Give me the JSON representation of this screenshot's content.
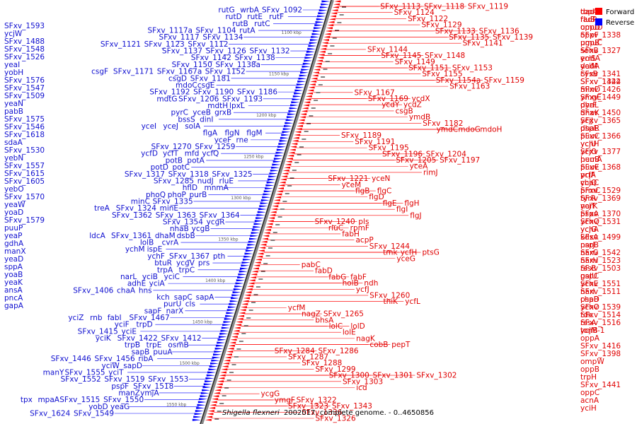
{
  "legend": {
    "forward": {
      "label": "Forward",
      "color": "#ff0000"
    },
    "reverse": {
      "label": "Reverse",
      "color": "#0000ff"
    }
  },
  "caption": {
    "organism": "Shigella flexneri",
    "rest": "2002017, complete genome. - 0..4650856"
  },
  "scale_labels": [
    "1100 kbp",
    "1150 kbp",
    "1200 kbp",
    "1250 kbp",
    "1300 kbp",
    "1350 kbp",
    "1400 kbp",
    "1450 kbp",
    "1500 kbp",
    "1550 kbp"
  ],
  "forward_genes": [
    "SFxv_1113",
    "SFxv_1118",
    "SFxv_1119",
    "SFxv_1124",
    "SFxv_1122",
    "SFxv_1129",
    "SFxv_1133",
    "SFxv_1136",
    "SFxv_1135",
    "SFxv_1139",
    "SFxv_1141",
    "SFxv_1144",
    "SFxv_1145",
    "SFxv_1148",
    "SFxv_1149",
    "SFxv_1151",
    "SFxv_1153",
    "SFxv_1155",
    "SFxv_1154a",
    "SFxv_1159",
    "SFxv_1163",
    "SFxv_1167",
    "SFxv_1169",
    "ycdX",
    "ycdY",
    "ycdZ",
    "csgB",
    "ymdB",
    "SFxv_1182",
    "ymdC",
    "mdoG",
    "mdoH",
    "SFxv_1189",
    "SFxv_1191",
    "SFxv_1195",
    "SFxv_1196",
    "SFxv_1204",
    "SFxv_1205",
    "SFxv_1197",
    "yceA",
    "rimJ",
    "SFxv_1221",
    "yceN",
    "yceM",
    "flgB",
    "flgC",
    "flgD",
    "flgE",
    "flgH",
    "flgI",
    "flgJ",
    "SFxv_1240",
    "pls",
    "rluC",
    "rpmF",
    "fabH",
    "acpP",
    "SFxv_1244",
    "tmk",
    "ycfH",
    "ptsG",
    "yceG",
    "pabC",
    "fabD",
    "fabG",
    "fabF",
    "holB",
    "ndh",
    "ycfJ",
    "SFxv_1260",
    "thiK",
    "ycfL",
    "ycfM",
    "nagZ",
    "SFxv_1265",
    "bhsA",
    "lolC",
    "lolD",
    "lolE",
    "nagK",
    "cobB",
    "pepT",
    "SFxv_1284",
    "SFxv_1286",
    "SFxv_1287",
    "SFxv_1288",
    "SFxv_1299",
    "SFxv_1300",
    "SFxv_1301",
    "SFxv_1302",
    "SFxv_1303",
    "icd",
    "ycgG",
    "ymgF",
    "SFxv_1322",
    "SFxv_1323",
    "SFxv_1343",
    "SFxv_1336",
    "SFxv_1326",
    "dadX",
    "fadR",
    "umuD",
    "SFxv_1338",
    "umuC",
    "SFxv_1327",
    "emtA",
    "dadA",
    "SFxv_1341",
    "SFxv_1342",
    "mInD",
    "ymgE",
    "dhaL",
    "dhaK",
    "SFxv_1365",
    "dhaR",
    "SFxv_1366",
    "ychH",
    "SFxv_1377",
    "hemA",
    "SFxv_1368",
    "prfA",
    "chaC",
    "prmC",
    "SFxv_1369",
    "narK",
    "SFxv_1370",
    "ychQ",
    "ychA",
    "kdsA",
    "narJ",
    "narG",
    "narH",
    "rssB",
    "galU",
    "ychE",
    "narI",
    "chaB",
    "ychO",
    "tdk",
    "rssA",
    "tonB",
    "oppA",
    "SFxv_1416",
    "SFxv_1398",
    "ompW",
    "oppB",
    "trpH",
    "SFxv_1441",
    "oppC",
    "acnA",
    "yciH",
    "topA",
    "rluB",
    "oppD",
    "oppF",
    "pgpB",
    "sohB",
    "yciS",
    "yciM",
    "cysB",
    "SFxv_1424",
    "SFxv_1426",
    "SFxv_1449",
    "pyrF",
    "SFxv_1450",
    "ycjJ",
    "pspE",
    "puuC",
    "ycjU",
    "ycjO",
    "puuB",
    "puuE",
    "ycjF",
    "ycjQ",
    "SFxv_1529",
    "tyrR",
    "ycjT",
    "pspA",
    "SFxv_1531",
    "ycjG",
    "SFxv_1499",
    "pspB",
    "SFxv_1542",
    "SFxv_1523",
    "SFxv_1503",
    "pspC",
    "SFxv_1551",
    "SFxv_1511",
    "pspD",
    "SFxv_1539",
    "SFxv_1514",
    "SFxv_1516",
    "ycjM-1"
  ],
  "reverse_genes": [
    "SFxv_1092",
    "wrbA",
    "rutG",
    "rutF",
    "rutE",
    "rutD",
    "rutC",
    "rutB",
    "rutA",
    "SFxv_1104",
    "SFxv_1117a",
    "SFxv_1134",
    "SFxv_1117",
    "SFxv_1112",
    "SFxv_1123",
    "SFxv_1121",
    "SFxv_1132",
    "SFxv_1126",
    "SFxv_1137",
    "SFxv_1138",
    "SFxv_1142",
    "SFxv_1138a",
    "SFxv_1150",
    "SFxv_1152",
    "SFxv_1167a",
    "SFxv_1171",
    "csgF",
    "SFxv_1181",
    "csgD",
    "csgE",
    "mdoC",
    "SFxv_1186",
    "SFxv_1190",
    "SFxv_1192",
    "SFxv_1193",
    "SFxv_1206",
    "mdtG",
    "lpxL",
    "mdtH",
    "grxB",
    "yceB",
    "pyrC",
    "dinI",
    "bssS",
    "solA",
    "yceJ",
    "yceI",
    "flgM",
    "flgN",
    "flgA",
    "rne",
    "yceF",
    "SFxv_1259",
    "SFxv_1270",
    "ycfQ",
    "mfd",
    "ycfT",
    "ycfD",
    "potA",
    "potB",
    "potC",
    "potD",
    "SFxv_1325",
    "SFxv_1318",
    "SFxv_1317",
    "rluE",
    "nudJ",
    "SFxv_1285",
    "mnmA",
    "hflD",
    "purB",
    "phoP",
    "phoQ",
    "SFxv_1335",
    "minC",
    "minE",
    "SFxv_1324",
    "treA",
    "SFxv_1364",
    "SFxv_1363",
    "SFxv_1362",
    "ycgR",
    "SFxv_1354",
    "ycgB",
    "nhaB",
    "dsbB",
    "dhaM",
    "SFxv_1361",
    "ldcA",
    "cvrA",
    "lolB",
    "ispE",
    "ychM",
    "pth",
    "SFxv_1367",
    "ychF",
    "prs",
    "ycgV",
    "btuR",
    "trpC",
    "trpA",
    "yciC",
    "yciB",
    "narL",
    "yciA",
    "adhE",
    "hns",
    "chaA",
    "SFxv_1406",
    "sapA",
    "sapC",
    "kch",
    "cls",
    "purU",
    "narX",
    "sapF",
    "SFxv_1467",
    "fabI",
    "rnb",
    "yciZ",
    "trpD",
    "yciF",
    "yciE",
    "SFxv_1415",
    "SFxv_1412",
    "SFxv_1422",
    "yciK",
    "osmB",
    "trpE",
    "trpB",
    "puuA",
    "sapB",
    "ribA",
    "SFxv_1456",
    "SFxv_1446",
    "sapD",
    "yciW",
    "yciT",
    "SFxv_1555",
    "manY",
    "SFxv_1553",
    "SFxv_1519",
    "SFxv_1552",
    "SFxv_1518",
    "pspF",
    "ymjA",
    "manZ",
    "SFxv_1550",
    "SFxv_1515",
    "mpaA",
    "tpx",
    "yeaG",
    "yobD",
    "SFxv_1549",
    "SFxv_1624",
    "SFxv_1593",
    "ycjW",
    "SFxv_1488",
    "SFxv_1548",
    "SFxv_1526",
    "yeaI",
    "yobH",
    "SFxv_1576",
    "SFxv_1547",
    "SFxv_1509",
    "yeaN",
    "pabB",
    "SFxv_1575",
    "SFxv_1546",
    "SFxv_1618",
    "sdaA",
    "SFxv_1530",
    "yebN",
    "SFxv_1557",
    "SFxv_1615",
    "SFxv_1605",
    "yebO",
    "SFxv_1570",
    "yeaW",
    "yoaD",
    "SFxv_1579",
    "puuP",
    "yeaP",
    "gdhA",
    "manX",
    "yeaD",
    "sppA",
    "yoaB",
    "yeaK",
    "ansA",
    "pncA",
    "gapA"
  ]
}
